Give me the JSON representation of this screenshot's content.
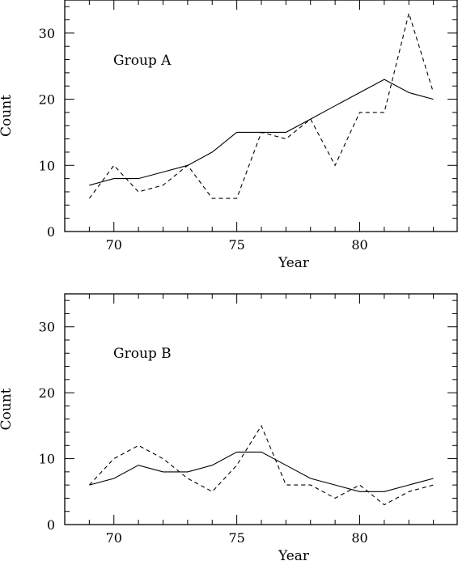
{
  "chart_data": [
    {
      "type": "line",
      "title": "",
      "annotation": "Group A",
      "xlabel": "Year",
      "ylabel": "Count",
      "xlim": [
        68,
        84
      ],
      "ylim": [
        0,
        35
      ],
      "xticks": [
        70,
        75,
        80
      ],
      "yticks": [
        0,
        10,
        20,
        30
      ],
      "x": [
        69,
        70,
        71,
        72,
        73,
        74,
        75,
        76,
        77,
        78,
        79,
        80,
        81,
        82,
        83
      ],
      "series": [
        {
          "style": "solid",
          "values": [
            7,
            8,
            8,
            9,
            10,
            12,
            15,
            15,
            15,
            17,
            19,
            21,
            23,
            21,
            20
          ]
        },
        {
          "style": "dashed",
          "values": [
            5,
            10,
            6,
            7,
            10,
            5,
            5,
            15,
            14,
            17,
            10,
            18,
            18,
            33,
            21
          ]
        }
      ],
      "grid": false
    },
    {
      "type": "line",
      "title": "",
      "annotation": "Group B",
      "xlabel": "Year",
      "ylabel": "Count",
      "xlim": [
        68,
        84
      ],
      "ylim": [
        0,
        35
      ],
      "xticks": [
        70,
        75,
        80
      ],
      "yticks": [
        0,
        10,
        20,
        30
      ],
      "x": [
        69,
        70,
        71,
        72,
        73,
        74,
        75,
        76,
        77,
        78,
        79,
        80,
        81,
        82,
        83
      ],
      "series": [
        {
          "style": "solid",
          "values": [
            6,
            7,
            9,
            8,
            8,
            9,
            11,
            11,
            9,
            7,
            6,
            5,
            5,
            6,
            7
          ]
        },
        {
          "style": "dashed",
          "values": [
            6,
            10,
            12,
            10,
            7,
            5,
            9,
            15,
            6,
            6,
            4,
            6,
            3,
            5,
            6
          ]
        }
      ],
      "grid": false
    }
  ]
}
